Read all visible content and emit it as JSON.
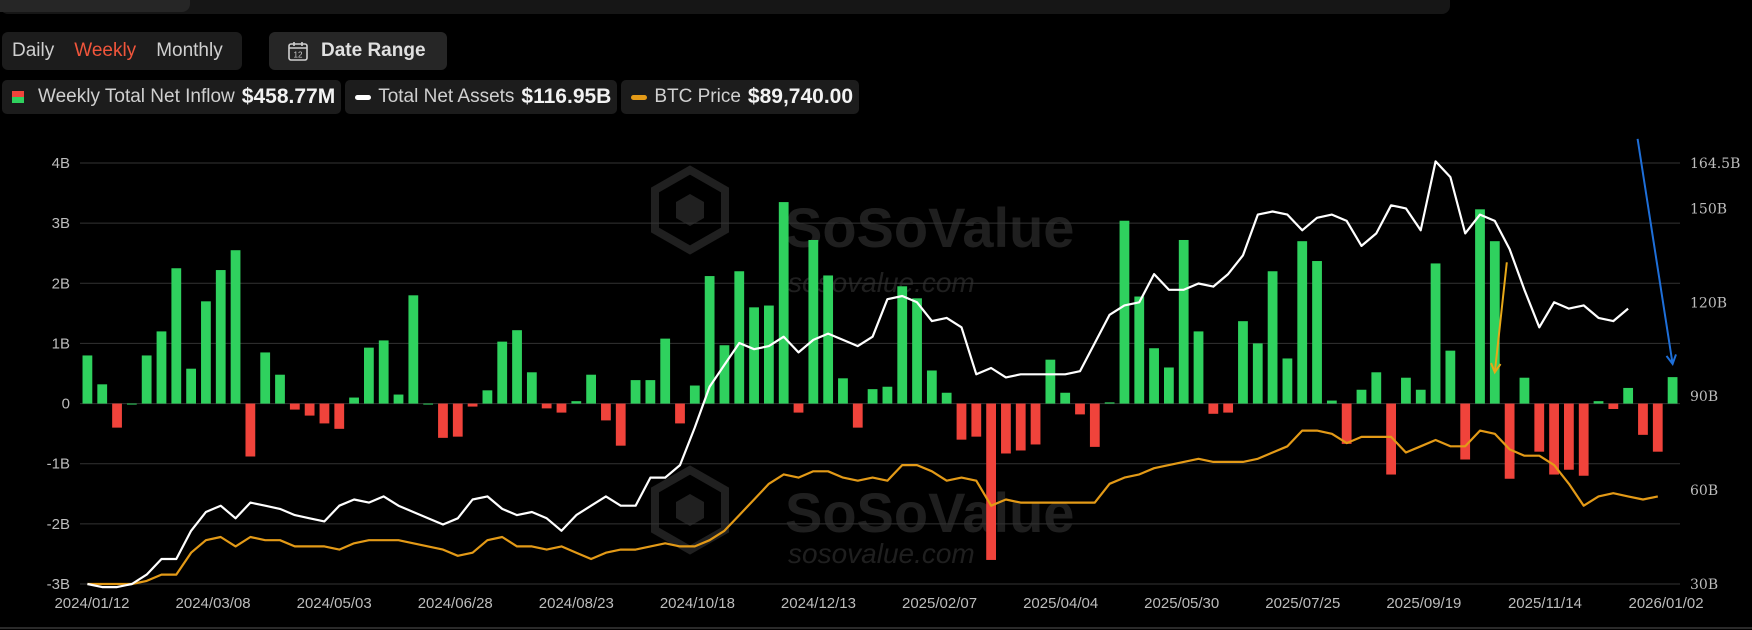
{
  "controls": {
    "periods": [
      "Daily",
      "Weekly",
      "Monthly"
    ],
    "active_period": "Weekly",
    "date_range_label": "Date Range",
    "calendar_icon_text": "12"
  },
  "legend": [
    {
      "label": "Weekly Total Net Inflow",
      "value": "$458.77M",
      "icon": "split-bar-icon"
    },
    {
      "label": "Total Net Assets",
      "value": "$116.95B",
      "icon": "line-swatch-icon",
      "color": "#ffffff"
    },
    {
      "label": "BTC Price",
      "value": "$89,740.00",
      "icon": "line-swatch-icon",
      "color": "#e39a17"
    }
  ],
  "watermark": {
    "brand": "SoSoValue",
    "url": "sosovalue.com"
  },
  "chart_data": {
    "type": "bar+line",
    "colors": {
      "positive": "#2fd15e",
      "negative": "#f0433b",
      "assets": "#ffffff",
      "btc": "#e39a17",
      "grid": "#333333",
      "annotation_orange": "#e8a818",
      "annotation_blue": "#1e6fd9"
    },
    "y_left": {
      "ticks": [
        "4B",
        "3B",
        "2B",
        "1B",
        "0",
        "-1B",
        "-2B",
        "-3B"
      ],
      "range": [
        -3,
        4
      ],
      "unit": "B"
    },
    "y_right": {
      "ticks": [
        "164.5B",
        "150B",
        "120B",
        "90B",
        "60B",
        "30B"
      ],
      "range": [
        30,
        164.5
      ]
    },
    "x_ticks": [
      "2024/01/12",
      "2024/03/08",
      "2024/05/03",
      "2024/06/28",
      "2024/08/23",
      "2024/10/18",
      "2024/12/13",
      "2025/02/07",
      "2025/04/04",
      "2025/05/30",
      "2025/07/25",
      "2025/09/19",
      "2025/11/14",
      "2026/01/02"
    ],
    "series": [
      {
        "name": "Weekly Total Net Inflow",
        "kind": "bar",
        "values": [
          0.8,
          0.32,
          -0.4,
          0,
          0.8,
          1.2,
          2.25,
          0.58,
          1.7,
          2.22,
          2.55,
          -0.88,
          0.85,
          0.48,
          -0.1,
          -0.2,
          -0.33,
          -0.42,
          0.1,
          0.93,
          1.05,
          0.15,
          1.8,
          0,
          -0.57,
          -0.55,
          -0.05,
          0.22,
          1.03,
          1.22,
          0.52,
          -0.08,
          -0.15,
          0.04,
          0.48,
          -0.28,
          -0.7,
          0.39,
          0.39,
          1.08,
          -0.33,
          0.3,
          2.12,
          0.97,
          2.2,
          1.6,
          1.63,
          3.35,
          -0.15,
          2.72,
          2.13,
          0.42,
          -0.4,
          0.24,
          0.28,
          1.95,
          1.75,
          0.55,
          0.18,
          -0.6,
          -0.55,
          -2.6,
          -0.83,
          -0.78,
          -0.68,
          0.73,
          0.18,
          -0.18,
          -0.72,
          0.02,
          3.04,
          1.78,
          0.92,
          0.6,
          2.72,
          1.2,
          -0.17,
          -0.15,
          1.37,
          1.0,
          2.2,
          0.75,
          2.7,
          2.37,
          0.05,
          -0.67,
          0.23,
          0.52,
          -1.18,
          0.43,
          0.23,
          2.33,
          0.88,
          -0.93,
          3.23,
          2.7,
          -1.25,
          0.43,
          -0.8,
          -1.18,
          -1.1,
          -1.2,
          0.04,
          -0.09,
          0.26,
          -0.52,
          -0.8,
          0.44
        ]
      },
      {
        "name": "Total Net Assets",
        "kind": "line",
        "values": [
          30,
          29,
          29,
          30,
          33,
          38,
          38,
          47,
          53,
          55,
          51,
          56,
          55,
          54,
          52,
          51,
          50,
          55,
          57,
          56,
          58,
          55,
          53,
          51,
          49,
          51,
          57,
          58,
          54,
          52,
          53,
          51,
          47,
          52,
          55,
          58,
          55,
          55,
          64,
          64,
          68,
          80,
          93,
          100,
          107,
          105,
          106,
          109,
          104,
          108,
          110,
          108,
          106,
          109,
          121,
          122,
          120,
          114,
          115,
          112,
          97,
          99,
          96,
          97,
          97,
          97,
          97,
          98,
          107,
          116,
          119,
          120,
          129,
          124,
          124,
          126,
          125,
          129,
          135,
          148,
          149,
          148,
          143,
          147,
          148,
          146,
          138,
          142,
          151,
          150,
          143,
          165,
          160,
          142,
          148,
          146,
          137,
          124,
          112,
          120,
          118,
          119,
          115,
          114,
          118
        ]
      },
      {
        "name": "BTC Price",
        "kind": "line",
        "values": [
          30,
          30,
          30,
          30,
          31,
          33,
          33,
          40,
          44,
          45,
          42,
          45,
          44,
          44,
          42,
          42,
          42,
          41,
          43,
          44,
          44,
          44,
          43,
          42,
          41,
          39,
          40,
          44,
          45,
          42,
          42,
          41,
          42,
          40,
          38,
          40,
          41,
          41,
          42,
          43,
          42,
          42,
          44,
          47,
          52,
          57,
          62,
          65,
          64,
          66,
          66,
          64,
          63,
          64,
          63,
          68,
          68,
          66,
          63,
          64,
          63,
          55,
          57,
          56,
          56,
          56,
          56,
          56,
          56,
          62,
          64,
          65,
          67,
          68,
          69,
          70,
          69,
          69,
          69,
          70,
          72,
          74,
          79,
          79,
          78,
          75,
          77,
          77,
          77,
          72,
          74,
          76,
          74,
          74,
          79,
          78,
          73,
          71,
          71,
          68,
          62,
          55,
          58,
          59,
          58,
          57,
          58
        ]
      }
    ],
    "annotations": [
      {
        "type": "arrow",
        "color": "orange"
      },
      {
        "type": "arrow",
        "color": "blue"
      }
    ]
  }
}
